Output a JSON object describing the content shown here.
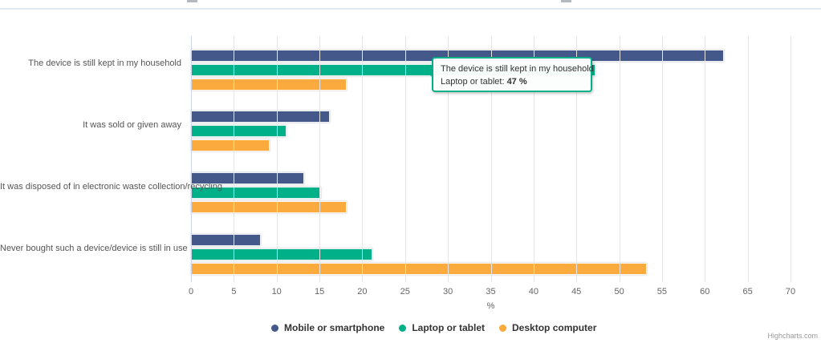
{
  "chart_data": {
    "type": "bar",
    "orientation": "horizontal",
    "title": "",
    "categories": [
      "The device is still kept in my household",
      "It was sold or given away",
      "It was disposed of in electronic waste collection/recycling",
      "Never bought such a device/device is still in use"
    ],
    "series": [
      {
        "name": "Mobile or smartphone",
        "color": "#44598a",
        "values": [
          62,
          16,
          13,
          8
        ]
      },
      {
        "name": "Laptop or tablet",
        "color": "#00b088",
        "values": [
          47,
          11,
          15,
          21
        ]
      },
      {
        "name": "Desktop computer",
        "color": "#fbab3e",
        "values": [
          18,
          9,
          18,
          53
        ]
      }
    ],
    "xlabel": "%",
    "xlim": [
      0,
      70
    ],
    "xticks": [
      0,
      5,
      10,
      15,
      20,
      25,
      30,
      35,
      40,
      45,
      50,
      55,
      60,
      65,
      70
    ],
    "grid": "vertical",
    "legend_position": "bottom",
    "unit_suffix": " %"
  },
  "tooltip": {
    "header": "The device is still kept in my household",
    "series_prefix": "Laptop or tablet: ",
    "value": "47 %",
    "border_color": "#00b088"
  },
  "credit": {
    "label": "Highcharts.com"
  }
}
